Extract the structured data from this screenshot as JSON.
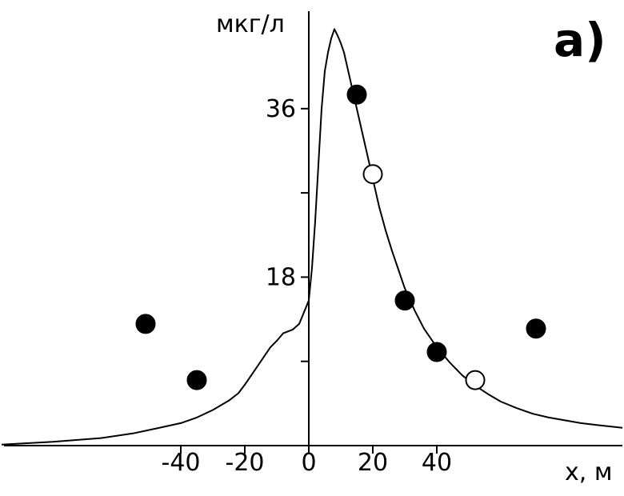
{
  "chart_data": {
    "type": "scatter",
    "panel_label": "а)",
    "xlabel": "x, м",
    "ylabel": "мкг/л",
    "x_ticks": [
      -40,
      -20,
      0,
      20,
      40
    ],
    "y_ticks": [
      9,
      18,
      27,
      36
    ],
    "y_tick_labels": [
      {
        "value": 18,
        "label": "18"
      },
      {
        "value": 36,
        "label": "36"
      }
    ],
    "xlim": [
      -96,
      98
    ],
    "ylim": [
      0,
      45
    ],
    "grid": false,
    "series": [
      {
        "kind": "line",
        "color": "#000000",
        "x": [
          -96,
          -80,
          -65,
          -55,
          -48,
          -40,
          -35,
          -30,
          -25,
          -22,
          -20,
          -17,
          -15,
          -12,
          -10,
          -8,
          -5,
          -3,
          0,
          1,
          2,
          3,
          4,
          5,
          6,
          7,
          8,
          9,
          10,
          11,
          12,
          14,
          16,
          18,
          20,
          22,
          24,
          26,
          28,
          30,
          33,
          36,
          40,
          44,
          48,
          52,
          56,
          60,
          65,
          70,
          75,
          80,
          85,
          90,
          98
        ],
        "y": [
          0.1,
          0.4,
          0.8,
          1.3,
          1.8,
          2.4,
          3.0,
          3.8,
          4.8,
          5.6,
          6.5,
          8.0,
          9.0,
          10.5,
          11.2,
          12.0,
          12.4,
          13.0,
          15.5,
          19.0,
          24.0,
          30.0,
          36.0,
          40.0,
          42.0,
          43.5,
          44.5,
          43.8,
          43.0,
          42.0,
          40.5,
          37.5,
          34.5,
          31.5,
          28.5,
          25.5,
          23.0,
          20.8,
          18.8,
          16.8,
          14.5,
          12.5,
          10.5,
          8.9,
          7.5,
          6.4,
          5.5,
          4.7,
          4.0,
          3.4,
          3.0,
          2.7,
          2.4,
          2.2,
          1.9
        ]
      },
      {
        "kind": "points",
        "marker": "filled-circle",
        "color": "#000000",
        "x": [
          -51,
          -35,
          15,
          30,
          40,
          71
        ],
        "y": [
          13,
          7,
          37.5,
          15.5,
          10,
          12.5
        ]
      },
      {
        "kind": "points",
        "marker": "open-circle",
        "color": "#000000",
        "x": [
          20,
          52
        ],
        "y": [
          29,
          7
        ]
      }
    ]
  }
}
